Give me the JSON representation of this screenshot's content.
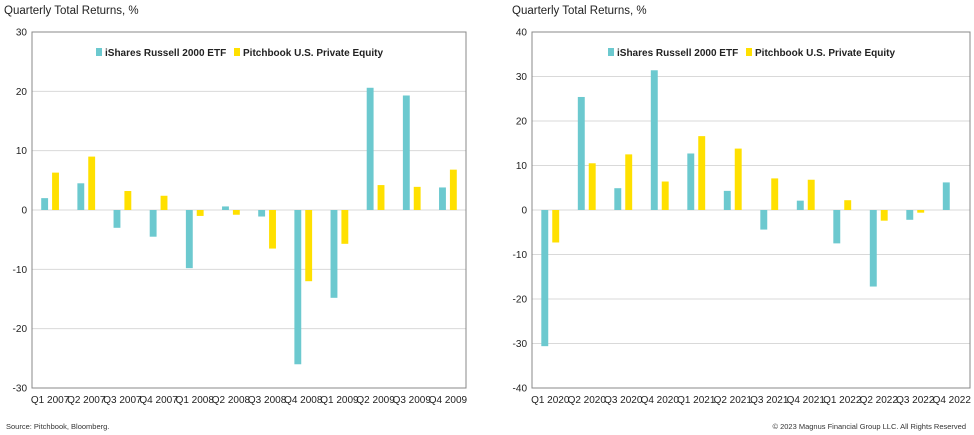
{
  "colors": {
    "russell": "#6cc9cf",
    "pe": "#ffe000",
    "frame": "#888888",
    "grid": "#d9d9d9"
  },
  "chart_data": [
    {
      "type": "bar",
      "title": "Quarterly Total Returns, %",
      "categories": [
        "Q1 2007",
        "Q2 2007",
        "Q3 2007",
        "Q4 2007",
        "Q1 2008",
        "Q2 2008",
        "Q3 2008",
        "Q4 2008",
        "Q1 2009",
        "Q2 2009",
        "Q3 2009",
        "Q4 2009"
      ],
      "series": [
        {
          "name": "iShares Russell 2000 ETF",
          "values": [
            2.0,
            4.5,
            -3.0,
            -4.5,
            -9.8,
            0.6,
            -1.1,
            -26.0,
            -14.8,
            20.6,
            19.3,
            3.8
          ]
        },
        {
          "name": "Pitchbook U.S. Private Equity",
          "values": [
            6.3,
            9.0,
            3.2,
            2.4,
            -1.0,
            -0.8,
            -6.5,
            -12.0,
            -5.7,
            4.2,
            3.9,
            6.8
          ]
        }
      ],
      "ylim": [
        -30,
        30
      ],
      "yticks": [
        -30,
        -20,
        -10,
        0,
        10,
        20,
        30
      ],
      "grid": true,
      "legend": "top"
    },
    {
      "type": "bar",
      "title": "Quarterly Total Returns, %",
      "categories": [
        "Q1 2020",
        "Q2 2020",
        "Q3 2020",
        "Q4 2020",
        "Q1 2021",
        "Q2 2021",
        "Q3 2021",
        "Q4 2021",
        "Q1 2022",
        "Q2 2022",
        "Q3 2022",
        "Q4 2022"
      ],
      "series": [
        {
          "name": "iShares Russell 2000 ETF",
          "values": [
            -30.6,
            25.4,
            4.9,
            31.4,
            12.7,
            4.3,
            -4.4,
            2.1,
            -7.5,
            -17.2,
            -2.2,
            6.2
          ]
        },
        {
          "name": "Pitchbook U.S. Private Equity",
          "values": [
            -7.3,
            10.5,
            12.5,
            6.4,
            16.6,
            13.8,
            7.1,
            6.8,
            2.2,
            -2.4,
            -0.6,
            0
          ]
        }
      ],
      "ylim": [
        -40,
        40
      ],
      "yticks": [
        -40,
        -30,
        -20,
        -10,
        0,
        10,
        20,
        30,
        40
      ],
      "grid": true,
      "legend": "top"
    }
  ],
  "footer": {
    "source": "Source: Pitchbook, Bloomberg.",
    "copyright": "© 2023 Magnus Financial Group LLC. All Rights Reserved"
  }
}
